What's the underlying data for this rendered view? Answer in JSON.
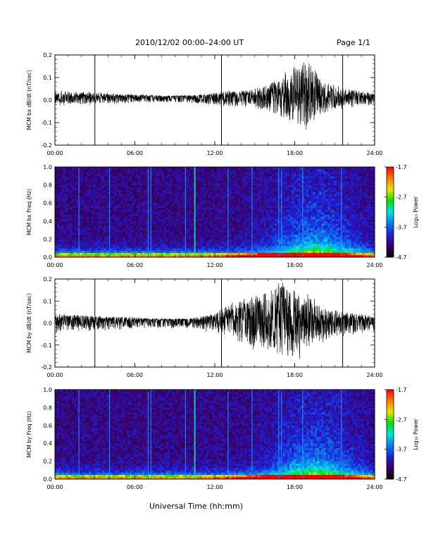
{
  "header": {
    "date_range": "2010/12/02  00:00–24:00 UT",
    "page": "Page 1/1"
  },
  "footer": {
    "xlabel": "Universal Time (hh:mm)"
  },
  "colorscale": [
    "#000000",
    "#3b0066",
    "#1e1fd6",
    "#0a7af0",
    "#00e5e5",
    "#00e000",
    "#e8e800",
    "#ff7a00",
    "#ff0000"
  ],
  "chart_data": [
    {
      "type": "line",
      "ylabel": "MCM bx dB/dt (nT/sec)",
      "x_range": [
        0,
        24
      ],
      "ylim": [
        -0.2,
        0.2
      ],
      "x_ticks": [
        "00:00",
        "06:00",
        "12:00",
        "18:00",
        "24:00"
      ],
      "y_ticks": [
        "0.2",
        "0.1",
        "0.0",
        "-0.1",
        "-0.2"
      ],
      "vertical_markers": [
        3.0,
        12.5,
        21.6
      ],
      "envelope": {
        "x": [
          0,
          2,
          4,
          6,
          8,
          10,
          12,
          13,
          14,
          15,
          16,
          17,
          18,
          19,
          20,
          21,
          22,
          23,
          24
        ],
        "upper": [
          0.04,
          0.035,
          0.03,
          0.025,
          0.02,
          0.02,
          0.03,
          0.04,
          0.04,
          0.05,
          0.07,
          0.1,
          0.15,
          0.18,
          0.09,
          0.06,
          0.05,
          0.04,
          0.03
        ],
        "lower": [
          -0.02,
          -0.02,
          -0.015,
          -0.01,
          -0.01,
          -0.01,
          -0.02,
          -0.03,
          -0.03,
          -0.03,
          -0.05,
          -0.08,
          -0.1,
          -0.12,
          -0.07,
          -0.04,
          -0.03,
          -0.02,
          -0.02
        ]
      }
    },
    {
      "type": "heatmap",
      "ylabel": "MCM bx Freq (Hz)",
      "x_range": [
        0,
        24
      ],
      "ylim": [
        0,
        1.0
      ],
      "x_ticks": [
        "00:00",
        "06:00",
        "12:00",
        "18:00",
        "24:00"
      ],
      "y_ticks": [
        "1.0",
        "0.8",
        "0.6",
        "0.4",
        "0.2",
        "0.0"
      ],
      "bright_lines": [
        1.8,
        4.1,
        7.0,
        7.2,
        9.8,
        10.5,
        13.0,
        14.8,
        16.8,
        17.0,
        18.6,
        21.5
      ],
      "colorbar": {
        "label": "Log₁₀ Power",
        "ticks": [
          "-1.7",
          "-2.7",
          "-3.7",
          "-4.7"
        ]
      }
    },
    {
      "type": "line",
      "ylabel": "MCM by dB/dt (nT/sec)",
      "x_range": [
        0,
        24
      ],
      "ylim": [
        -0.2,
        0.2
      ],
      "x_ticks": [
        "00:00",
        "06:00",
        "12:00",
        "18:00",
        "24:00"
      ],
      "y_ticks": [
        "0.2",
        "0.1",
        "0.0",
        "-0.1",
        "-0.2"
      ],
      "vertical_markers": [
        3.0,
        12.5,
        21.6
      ],
      "envelope": {
        "x": [
          0,
          2,
          4,
          6,
          8,
          10,
          12,
          13,
          14,
          15,
          16,
          17,
          18,
          19,
          20,
          21,
          22,
          23,
          24
        ],
        "upper": [
          0.04,
          0.035,
          0.03,
          0.025,
          0.02,
          0.02,
          0.04,
          0.08,
          0.1,
          0.11,
          0.15,
          0.17,
          0.16,
          0.12,
          0.08,
          0.06,
          0.05,
          0.04,
          0.03
        ],
        "lower": [
          -0.04,
          -0.03,
          -0.03,
          -0.02,
          -0.02,
          -0.02,
          -0.04,
          -0.07,
          -0.09,
          -0.11,
          -0.13,
          -0.15,
          -0.16,
          -0.12,
          -0.08,
          -0.06,
          -0.05,
          -0.04,
          -0.03
        ]
      }
    },
    {
      "type": "heatmap",
      "ylabel": "MCM by Freq (Hz)",
      "x_range": [
        0,
        24
      ],
      "ylim": [
        0,
        1.0
      ],
      "x_ticks": [
        "00:00",
        "06:00",
        "12:00",
        "18:00",
        "24:00"
      ],
      "y_ticks": [
        "1.0",
        "0.8",
        "0.6",
        "0.4",
        "0.2",
        "0.0"
      ],
      "bright_lines": [
        1.8,
        4.1,
        7.0,
        7.2,
        9.8,
        10.5,
        13.0,
        14.8,
        16.8,
        17.0,
        18.6,
        21.5
      ],
      "colorbar": {
        "label": "Log₁₀ Power",
        "ticks": [
          "-1.7",
          "-2.7",
          "-3.7",
          "-4.7"
        ]
      }
    }
  ]
}
